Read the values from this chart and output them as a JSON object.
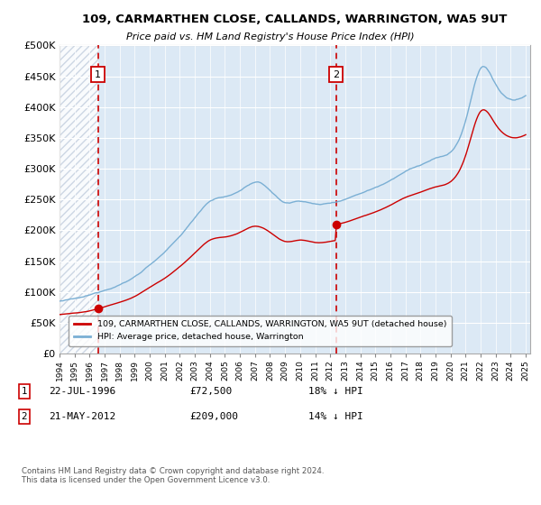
{
  "title": "109, CARMARTHEN CLOSE, CALLANDS, WARRINGTON, WA5 9UT",
  "subtitle": "Price paid vs. HM Land Registry's House Price Index (HPI)",
  "ylim": [
    0,
    500000
  ],
  "yticks": [
    0,
    50000,
    100000,
    150000,
    200000,
    250000,
    300000,
    350000,
    400000,
    450000,
    500000
  ],
  "ytick_labels": [
    "£0",
    "£50K",
    "£100K",
    "£150K",
    "£200K",
    "£250K",
    "£300K",
    "£350K",
    "£400K",
    "£450K",
    "£500K"
  ],
  "sale1_year": 1996.55,
  "sale1_price": 72500,
  "sale1_label": "1",
  "sale1_date": "22-JUL-1996",
  "sale1_amount": "£72,500",
  "sale1_hpi": "18% ↓ HPI",
  "sale2_year": 2012.38,
  "sale2_price": 209000,
  "sale2_label": "2",
  "sale2_date": "21-MAY-2012",
  "sale2_amount": "£209,000",
  "sale2_hpi": "14% ↓ HPI",
  "property_color": "#cc0000",
  "hpi_color": "#7aafd4",
  "plot_bg_color": "#dce9f5",
  "hatch_color": "#c5d0e0",
  "legend_property": "109, CARMARTHEN CLOSE, CALLANDS, WARRINGTON, WA5 9UT (detached house)",
  "legend_hpi": "HPI: Average price, detached house, Warrington",
  "footnote": "Contains HM Land Registry data © Crown copyright and database right 2024.\nThis data is licensed under the Open Government Licence v3.0.",
  "grid_color": "#ffffff"
}
